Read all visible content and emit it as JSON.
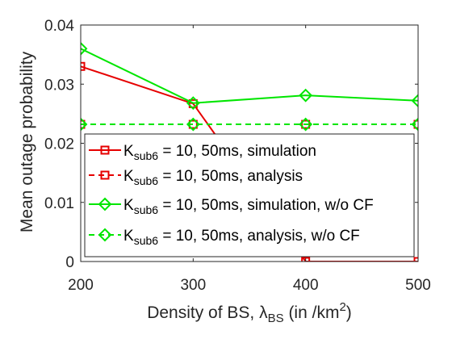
{
  "chart_data": {
    "type": "line",
    "xlabel": {
      "prefix": "Density of BS, ",
      "symbol": "λ",
      "subscript": "BS",
      "suffix": " (in /km",
      "superscript": "2",
      "close": ")"
    },
    "ylabel": "Mean outage probability",
    "x_ticks": [
      "200",
      "300",
      "400",
      "500"
    ],
    "y_ticks": [
      "0",
      "0.01",
      "0.02",
      "0.03",
      "0.04"
    ],
    "xlim": [
      200,
      500
    ],
    "ylim": [
      0,
      0.04
    ],
    "grid": false,
    "legend_position": "lower-right",
    "series": [
      {
        "name": "K_sub6 = 10, 50ms, simulation",
        "legend": {
          "main": "K",
          "sub": "sub6",
          "rest": " = 10, 50ms, simulation"
        },
        "color": "#e60000",
        "linestyle": "solid",
        "marker": "square",
        "x": [
          200,
          300,
          400,
          500
        ],
        "y": [
          0.033,
          0.0267,
          0,
          0
        ]
      },
      {
        "name": "K_sub6 = 10, 50ms, analysis",
        "legend": {
          "main": "K",
          "sub": "sub6",
          "rest": " = 10, 50ms, analysis"
        },
        "color": "#e60000",
        "linestyle": "dashed",
        "marker": "square",
        "x": [
          200,
          300,
          400,
          500
        ],
        "y": [
          0.0232,
          0.0232,
          0.0232,
          0.0232
        ]
      },
      {
        "name": "K_sub6 = 10, 50ms, simulation, w/o CF",
        "legend": {
          "main": "K",
          "sub": "sub6",
          "rest": " = 10, 50ms, simulation, w/o CF"
        },
        "color": "#00e600",
        "linestyle": "solid",
        "marker": "diamond",
        "x": [
          200,
          300,
          400,
          500
        ],
        "y": [
          0.036,
          0.0268,
          0.0281,
          0.0272
        ]
      },
      {
        "name": "K_sub6 = 10, 50ms, analysis, w/o CF",
        "legend": {
          "main": "K",
          "sub": "sub6",
          "rest": " = 10, 50ms, analysis, w/o CF"
        },
        "color": "#00e600",
        "linestyle": "dashed",
        "marker": "diamond",
        "x": [
          200,
          300,
          400,
          500
        ],
        "y": [
          0.0232,
          0.0232,
          0.0232,
          0.0232
        ]
      }
    ]
  }
}
